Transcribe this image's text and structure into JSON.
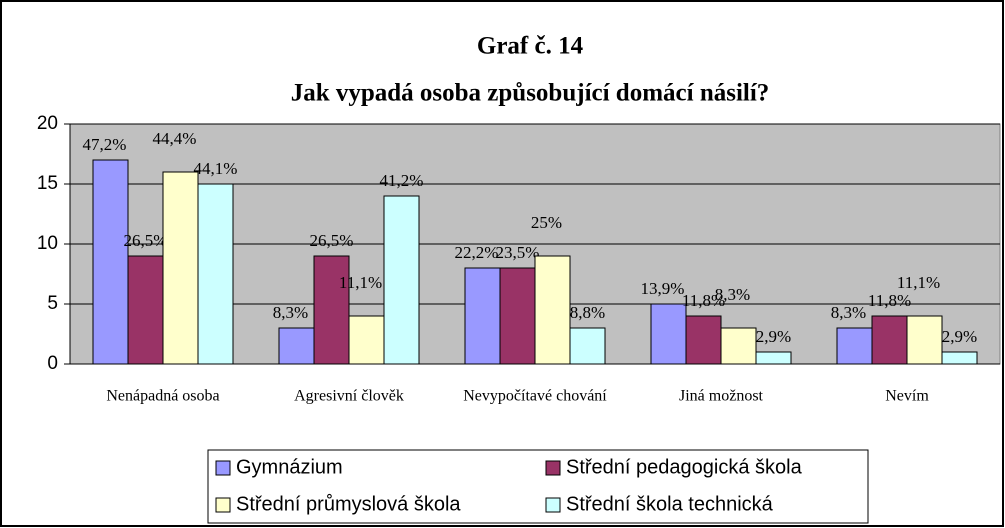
{
  "chart_data": {
    "type": "bar",
    "title": "Graf č. 14",
    "subtitle": "Jak vypadá osoba způsobující domácí násilí?",
    "categories": [
      "Nenápadná osoba",
      "Agresivní člověk",
      "Nevypočítavé chování",
      "Jiná možnost",
      "Nevím"
    ],
    "series": [
      {
        "name": "Gymnázium",
        "color": "#9999ff",
        "values": [
          17,
          3,
          8,
          5,
          3
        ],
        "value_labels": [
          "47,2%",
          "8,3%",
          "22,2%",
          "13,9%",
          "8,3%"
        ]
      },
      {
        "name": "Střední pedagogická škola",
        "color": "#993366",
        "values": [
          9,
          9,
          8,
          4,
          4
        ],
        "value_labels": [
          "26,5%",
          "26,5%",
          "23,5%",
          "11,8%",
          "11,8%"
        ]
      },
      {
        "name": "Střední průmyslová škola",
        "color": "#ffffcc",
        "values": [
          16,
          4,
          9,
          3,
          4
        ],
        "value_labels": [
          "44,4%",
          "11,1%",
          "25%",
          "8,3%",
          "11,1%"
        ]
      },
      {
        "name": "Střední škola technická",
        "color": "#ccffff",
        "values": [
          15,
          14,
          3,
          1,
          1
        ],
        "value_labels": [
          "44,1%",
          "41,2%",
          "8,8%",
          "2,9%",
          "2,9%"
        ]
      }
    ],
    "ylim": [
      0,
      20
    ],
    "yticks": [
      0,
      5,
      10,
      15,
      20
    ],
    "grid": true,
    "plot_background": "#c0c0c0",
    "legend": "bottom"
  }
}
